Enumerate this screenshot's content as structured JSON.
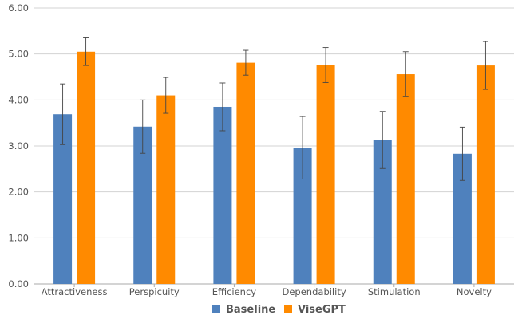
{
  "chart_data": {
    "type": "bar",
    "title": "",
    "xlabel": "",
    "ylabel": "",
    "categories": [
      "Attractiveness",
      "Perspicuity",
      "Efficiency",
      "Dependability",
      "Stimulation",
      "Novelty"
    ],
    "ylim": [
      0,
      6
    ],
    "yticks": [
      "0.00",
      "1.00",
      "2.00",
      "3.00",
      "4.00",
      "5.00",
      "6.00"
    ],
    "grid": true,
    "legend_position": "bottom",
    "series": [
      {
        "name": "Baseline",
        "color": "#4F81BD",
        "values": [
          3.69,
          3.42,
          3.85,
          2.96,
          3.13,
          2.83
        ],
        "error": [
          0.66,
          0.58,
          0.52,
          0.68,
          0.62,
          0.58
        ]
      },
      {
        "name": "ViseGPT",
        "color": "#FF8A00",
        "values": [
          5.05,
          4.1,
          4.81,
          4.76,
          4.56,
          4.75
        ],
        "error": [
          0.3,
          0.39,
          0.27,
          0.38,
          0.49,
          0.52
        ]
      }
    ]
  }
}
